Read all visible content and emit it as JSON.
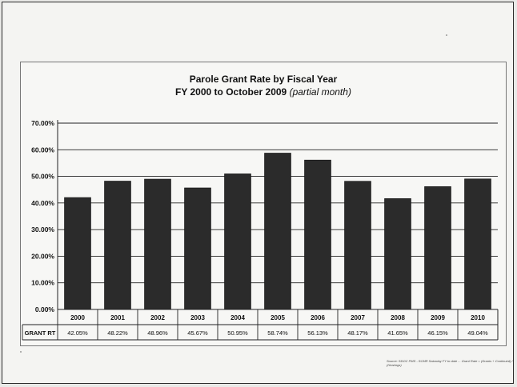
{
  "chart_data": {
    "type": "bar",
    "title": "Parole Grant Rate by Fiscal Year",
    "subtitle_main": "FY 2000 to October 2009",
    "subtitle_note": "(partial month)",
    "categories": [
      "2000",
      "2001",
      "2002",
      "2003",
      "2004",
      "2005",
      "2006",
      "2007",
      "2008",
      "2009",
      "2010"
    ],
    "values": [
      42.05,
      48.22,
      48.96,
      45.67,
      50.95,
      58.74,
      56.13,
      48.17,
      41.65,
      46.15,
      49.04
    ],
    "value_labels": [
      "42.05%",
      "48.22%",
      "48.96%",
      "45.67%",
      "50.95%",
      "58.74%",
      "56.13%",
      "48.17%",
      "41.65%",
      "46.15%",
      "49.04%"
    ],
    "y_ticks": [
      "0.00%",
      "10.00%",
      "20.00%",
      "30.00%",
      "40.00%",
      "50.00%",
      "60.00%",
      "70.00%"
    ],
    "ylim": [
      0,
      70
    ],
    "row_label": "GRANT RT",
    "bar_color": "#2b2b2b",
    "grid": true
  },
  "footnote": "Source: SDOC PMS - SCMR Saturday FY to date ... Grant Rate = (Grants + Continued) / (Hearings)"
}
